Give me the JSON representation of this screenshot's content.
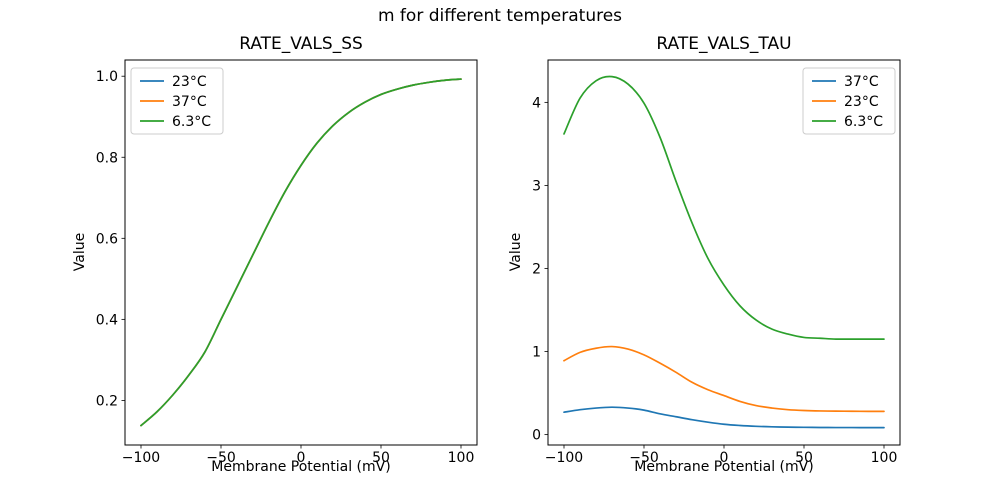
{
  "figure": {
    "suptitle": "m for different temperatures",
    "background_color": "#ffffff",
    "axis_color": "#000000",
    "legend_border_color": "#cccccc",
    "legend_background_color": "#ffffff"
  },
  "chart_data": [
    {
      "type": "line",
      "title": "RATE_VALS_SS",
      "xlabel": "Membrane Potential (mV)",
      "ylabel": "Value",
      "xlim": [
        -110,
        110
      ],
      "ylim": [
        0.09,
        1.04
      ],
      "xticks": [
        -100,
        -50,
        0,
        50,
        100
      ],
      "xtick_labels": [
        "−100",
        "−50",
        "0",
        "50",
        "100"
      ],
      "yticks": [
        0.2,
        0.4,
        0.6,
        0.8,
        1.0
      ],
      "ytick_labels": [
        "0.2",
        "0.4",
        "0.6",
        "0.8",
        "1.0"
      ],
      "grid": false,
      "legend_position": "upper-left",
      "x": [
        -100,
        -90,
        -80,
        -70,
        -60,
        -50,
        -40,
        -30,
        -20,
        -10,
        0,
        10,
        20,
        30,
        40,
        50,
        60,
        70,
        80,
        90,
        100
      ],
      "series": [
        {
          "name": "23°C",
          "color": "#1f77b4",
          "values": [
            0.138,
            0.172,
            0.214,
            0.263,
            0.32,
            0.4,
            0.48,
            0.56,
            0.64,
            0.715,
            0.78,
            0.835,
            0.878,
            0.911,
            0.936,
            0.955,
            0.968,
            0.978,
            0.985,
            0.99,
            0.993
          ]
        },
        {
          "name": "37°C",
          "color": "#ff7f0e",
          "values": [
            0.138,
            0.172,
            0.214,
            0.263,
            0.32,
            0.4,
            0.48,
            0.56,
            0.64,
            0.715,
            0.78,
            0.835,
            0.878,
            0.911,
            0.936,
            0.955,
            0.968,
            0.978,
            0.985,
            0.99,
            0.993
          ]
        },
        {
          "name": "6.3°C",
          "color": "#2ca02c",
          "values": [
            0.138,
            0.172,
            0.214,
            0.263,
            0.32,
            0.4,
            0.48,
            0.56,
            0.64,
            0.715,
            0.78,
            0.835,
            0.878,
            0.911,
            0.936,
            0.955,
            0.968,
            0.978,
            0.985,
            0.99,
            0.993
          ]
        }
      ],
      "note": "all three temperature curves coincide; green drawn on top"
    },
    {
      "type": "line",
      "title": "RATE_VALS_TAU",
      "xlabel": "Membrane Potential (mV)",
      "ylabel": "Value",
      "xlim": [
        -110,
        110
      ],
      "ylim": [
        -0.125,
        4.51
      ],
      "xticks": [
        -100,
        -50,
        0,
        50,
        100
      ],
      "xtick_labels": [
        "−100",
        "−50",
        "0",
        "50",
        "100"
      ],
      "yticks": [
        0,
        1,
        2,
        3,
        4
      ],
      "ytick_labels": [
        "0",
        "1",
        "2",
        "3",
        "4"
      ],
      "grid": false,
      "legend_position": "upper-right",
      "x": [
        -100,
        -90,
        -80,
        -70,
        -60,
        -50,
        -40,
        -30,
        -20,
        -10,
        0,
        10,
        20,
        30,
        40,
        50,
        60,
        70,
        80,
        90,
        100
      ],
      "series": [
        {
          "name": "37°C",
          "color": "#1f77b4",
          "values": [
            0.27,
            0.3,
            0.32,
            0.33,
            0.32,
            0.295,
            0.25,
            0.215,
            0.18,
            0.15,
            0.125,
            0.11,
            0.1,
            0.094,
            0.09,
            0.088,
            0.086,
            0.085,
            0.085,
            0.084,
            0.084
          ]
        },
        {
          "name": "23°C",
          "color": "#ff7f0e",
          "values": [
            0.89,
            0.99,
            1.04,
            1.06,
            1.03,
            0.96,
            0.86,
            0.75,
            0.63,
            0.54,
            0.47,
            0.4,
            0.35,
            0.32,
            0.3,
            0.29,
            0.285,
            0.283,
            0.281,
            0.28,
            0.28
          ]
        },
        {
          "name": "6.3°C",
          "color": "#2ca02c",
          "values": [
            3.62,
            4.05,
            4.26,
            4.31,
            4.22,
            3.99,
            3.58,
            3.05,
            2.55,
            2.12,
            1.8,
            1.55,
            1.38,
            1.27,
            1.21,
            1.17,
            1.16,
            1.15,
            1.15,
            1.15,
            1.15
          ]
        }
      ]
    }
  ]
}
